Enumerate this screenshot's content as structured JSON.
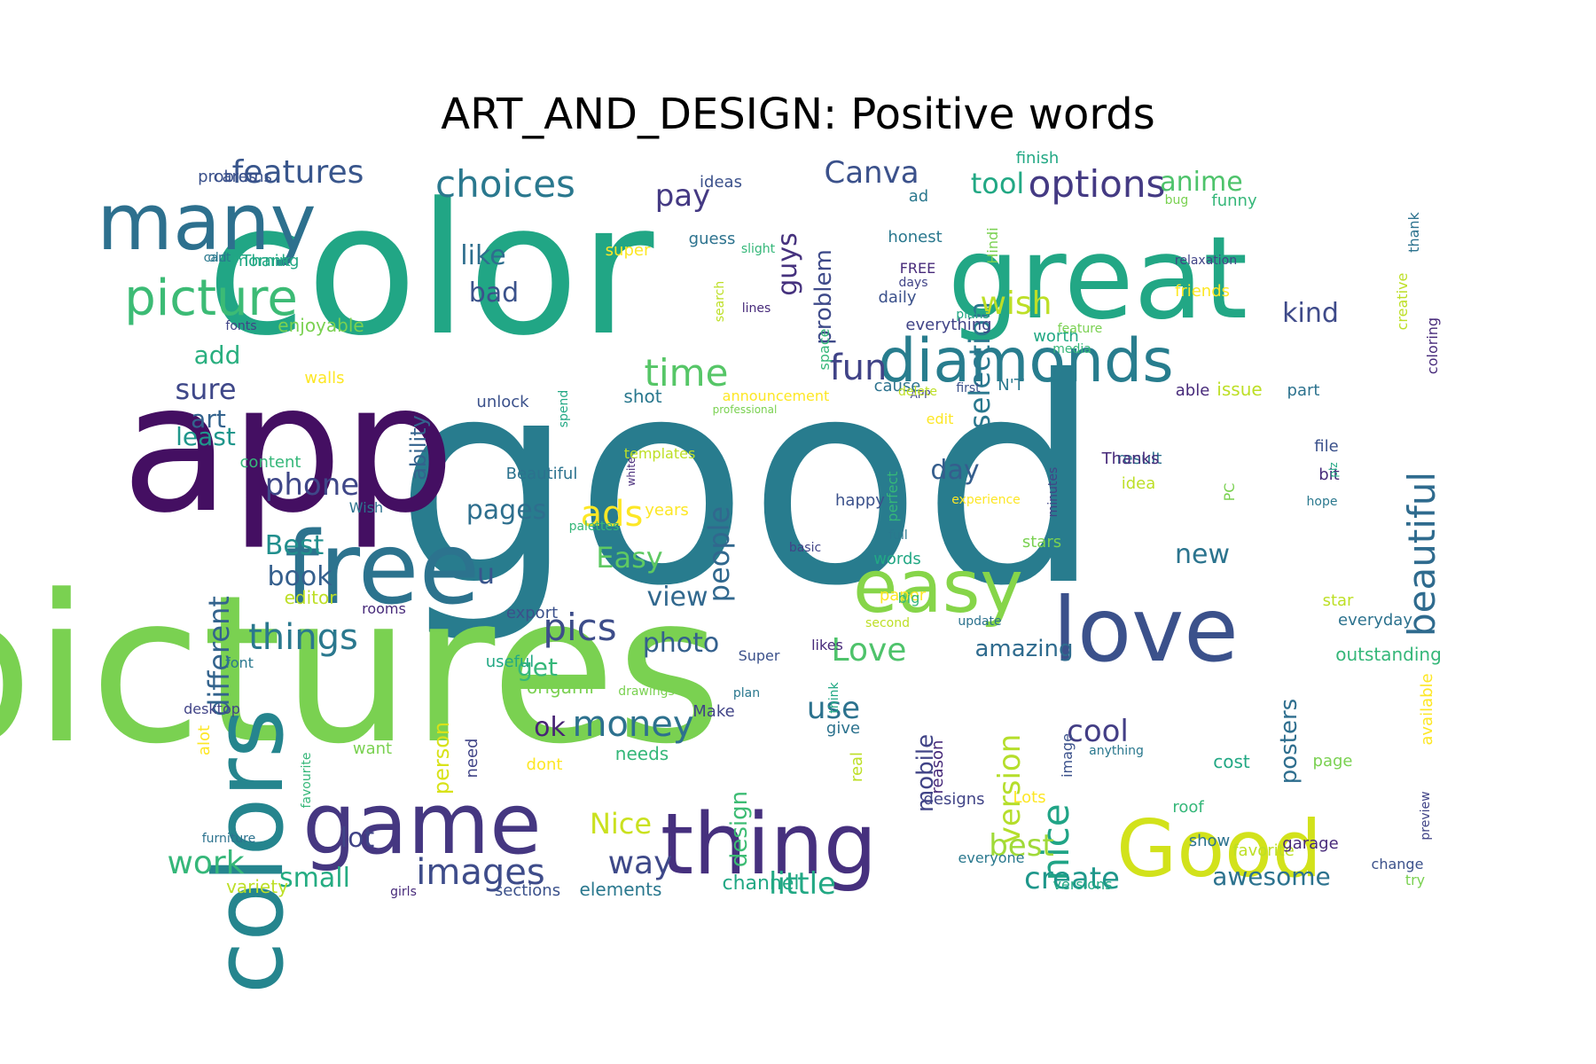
{
  "chart_data": {
    "type": "wordcloud",
    "title": "ART_AND_DESIGN: Positive words",
    "background": "#ffffff",
    "colormap": "viridis",
    "words": [
      {
        "text": "good",
        "weight": 100,
        "color": "#287c8e"
      },
      {
        "text": "pictures",
        "weight": 96,
        "color": "#7ad151"
      },
      {
        "text": "color",
        "weight": 88,
        "color": "#21a685"
      },
      {
        "text": "app",
        "weight": 85,
        "color": "#440f62"
      },
      {
        "text": "great",
        "weight": 56,
        "color": "#22a785"
      },
      {
        "text": "free",
        "weight": 48,
        "color": "#2c738e"
      },
      {
        "text": "colors",
        "weight": 44,
        "color": "#25858e"
      },
      {
        "text": "love",
        "weight": 42,
        "color": "#3b518b"
      },
      {
        "text": "game",
        "weight": 40,
        "color": "#453781"
      },
      {
        "text": "thing",
        "weight": 40,
        "color": "#46307e"
      },
      {
        "text": "Good",
        "weight": 38,
        "color": "#d2e21b"
      },
      {
        "text": "many",
        "weight": 37,
        "color": "#2d708e"
      },
      {
        "text": "easy",
        "weight": 36,
        "color": "#86d549"
      },
      {
        "text": "diamonds",
        "weight": 31,
        "color": "#287d8e"
      },
      {
        "text": "picture",
        "weight": 25,
        "color": "#3cbb75"
      },
      {
        "text": "beautiful",
        "weight": 18,
        "color": "#2f6b8e"
      },
      {
        "text": "options",
        "weight": 18,
        "color": "#443a83"
      },
      {
        "text": "choices",
        "weight": 18,
        "color": "#2a788e"
      },
      {
        "text": "time",
        "weight": 18,
        "color": "#56c667"
      },
      {
        "text": "pics",
        "weight": 18,
        "color": "#3d4d8a"
      },
      {
        "text": "images",
        "weight": 18,
        "color": "#3e4c8a"
      },
      {
        "text": "money",
        "weight": 18,
        "color": "#2d718e"
      },
      {
        "text": "ads",
        "weight": 18,
        "color": "#fde725"
      },
      {
        "text": "fun",
        "weight": 18,
        "color": "#404387"
      },
      {
        "text": "features",
        "weight": 15,
        "color": "#39568c"
      },
      {
        "text": "things",
        "weight": 15,
        "color": "#2a788e"
      },
      {
        "text": "work",
        "weight": 15,
        "color": "#35b779"
      },
      {
        "text": "Canva",
        "weight": 15,
        "color": "#3b518b"
      },
      {
        "text": "selection",
        "weight": 14,
        "color": "#2a788e"
      },
      {
        "text": "version",
        "weight": 14,
        "color": "#b5de2b"
      },
      {
        "text": "nice",
        "weight": 14,
        "color": "#20a486"
      },
      {
        "text": "people",
        "weight": 14,
        "color": "#31688e"
      },
      {
        "text": "little",
        "weight": 14,
        "color": "#22a884"
      },
      {
        "text": "cool",
        "weight": 14,
        "color": "#433e85"
      },
      {
        "text": "Love",
        "weight": 14,
        "color": "#4ec36b"
      },
      {
        "text": "best",
        "weight": 14,
        "color": "#a0da39"
      },
      {
        "text": "way",
        "weight": 14,
        "color": "#3e4989"
      },
      {
        "text": "phone",
        "weight": 14,
        "color": "#3f4788"
      },
      {
        "text": "wish",
        "weight": 14,
        "color": "#bddf26"
      },
      {
        "text": "different",
        "weight": 13,
        "color": "#33638d"
      },
      {
        "text": "guys",
        "weight": 13,
        "color": "#46327e"
      },
      {
        "text": "anime",
        "weight": 13,
        "color": "#4ec36b"
      },
      {
        "text": "create",
        "weight": 13,
        "color": "#1f978b"
      },
      {
        "text": "awesome",
        "weight": 12,
        "color": "#2c728e"
      },
      {
        "text": "Easy",
        "weight": 12,
        "color": "#5ec962"
      },
      {
        "text": "Nice",
        "weight": 12,
        "color": "#cae11f"
      },
      {
        "text": "sure",
        "weight": 12,
        "color": "#3f4889"
      },
      {
        "text": "tool",
        "weight": 12,
        "color": "#22a884"
      },
      {
        "text": "pay",
        "weight": 12,
        "color": "#443983"
      },
      {
        "text": "view",
        "weight": 12,
        "color": "#31688e"
      },
      {
        "text": "small",
        "weight": 12,
        "color": "#25ac82"
      },
      {
        "text": "use",
        "weight": 12,
        "color": "#2c728e"
      },
      {
        "text": "lot",
        "weight": 12,
        "color": "#414487"
      },
      {
        "text": "design",
        "weight": 11,
        "color": "#3dbc74"
      },
      {
        "text": "ok",
        "weight": 11,
        "color": "#482475"
      },
      {
        "text": "problem",
        "weight": 11,
        "color": "#3e4a89"
      },
      {
        "text": "photo",
        "weight": 11,
        "color": "#34608d"
      },
      {
        "text": "bad",
        "weight": 11,
        "color": "#3b528b"
      },
      {
        "text": "like",
        "weight": 11,
        "color": "#2e6e8e"
      },
      {
        "text": "pages",
        "weight": 11,
        "color": "#2e6f8e"
      },
      {
        "text": "Best",
        "weight": 11,
        "color": "#218f8d"
      },
      {
        "text": "book",
        "weight": 11,
        "color": "#355f8d"
      },
      {
        "text": "art",
        "weight": 11,
        "color": "#33638d"
      },
      {
        "text": "least",
        "weight": 11,
        "color": "#1f968b"
      },
      {
        "text": "add",
        "weight": 11,
        "color": "#29af7f"
      },
      {
        "text": "day",
        "weight": 11,
        "color": "#355e8d"
      },
      {
        "text": "kind",
        "weight": 11,
        "color": "#3e4a89"
      },
      {
        "text": "amazing",
        "weight": 10,
        "color": "#2f6b8e"
      },
      {
        "text": "new",
        "weight": 10,
        "color": "#2b748e"
      },
      {
        "text": "get",
        "weight": 10,
        "color": "#35b779"
      },
      {
        "text": "posters",
        "weight": 10,
        "color": "#2e6e8e"
      },
      {
        "text": "mobile",
        "weight": 10,
        "color": "#414487"
      },
      {
        "text": "person",
        "weight": 10,
        "color": "#d8e219"
      },
      {
        "text": "ability",
        "weight": 10,
        "color": "#33638d"
      },
      {
        "text": "u",
        "weight": 10,
        "color": "#39558c"
      }
    ],
    "minor_words": [
      "problems",
      "old",
      "morning",
      "enjoyable",
      "fonts",
      "walls",
      "content",
      "Wish",
      "editor",
      "rooms",
      "export",
      "font",
      "useful",
      "origami",
      "desktop",
      "alot",
      "favourite",
      "furniture",
      "variety",
      "girls",
      "sections",
      "elements",
      "channel",
      "want",
      "need",
      "dont",
      "needs",
      "give",
      "real",
      "reason",
      "image",
      "anything",
      "cost",
      "page",
      "designs",
      "Lots",
      "roof",
      "show",
      "favorite",
      "garage",
      "change",
      "everyone",
      "versions",
      "try",
      "preview",
      "available",
      "outstanding",
      "everyday",
      "star",
      "bit",
      "file",
      "hope",
      "plz",
      "PC",
      "minutes",
      "experience",
      "perfect",
      "result",
      "idea",
      "Thanks",
      "happy",
      "full",
      "words",
      "stars",
      "basic",
      "paper",
      "big",
      "update",
      "second",
      "likes",
      "Super",
      "plan",
      "think",
      "drawings",
      "Make",
      "years",
      "palettes",
      "Beautiful",
      "templates",
      "white",
      "unlock",
      "shot",
      "spend",
      "professional",
      "APP",
      "edit",
      "media",
      "part",
      "issue",
      "able",
      "first",
      "N'T",
      "worth",
      "feature",
      "everything",
      "announcement",
      "space",
      "cause",
      "delete",
      "FREE",
      "daily",
      "honest",
      "plans",
      "Hindi",
      "days",
      "super",
      "slight",
      "guess",
      "search",
      "lines",
      "ideas",
      "ad",
      "finish",
      "bug",
      "relaxation",
      "friends",
      "funny",
      "thank",
      "creative",
      "coloring",
      "cards",
      "cant",
      "Thank"
    ]
  }
}
